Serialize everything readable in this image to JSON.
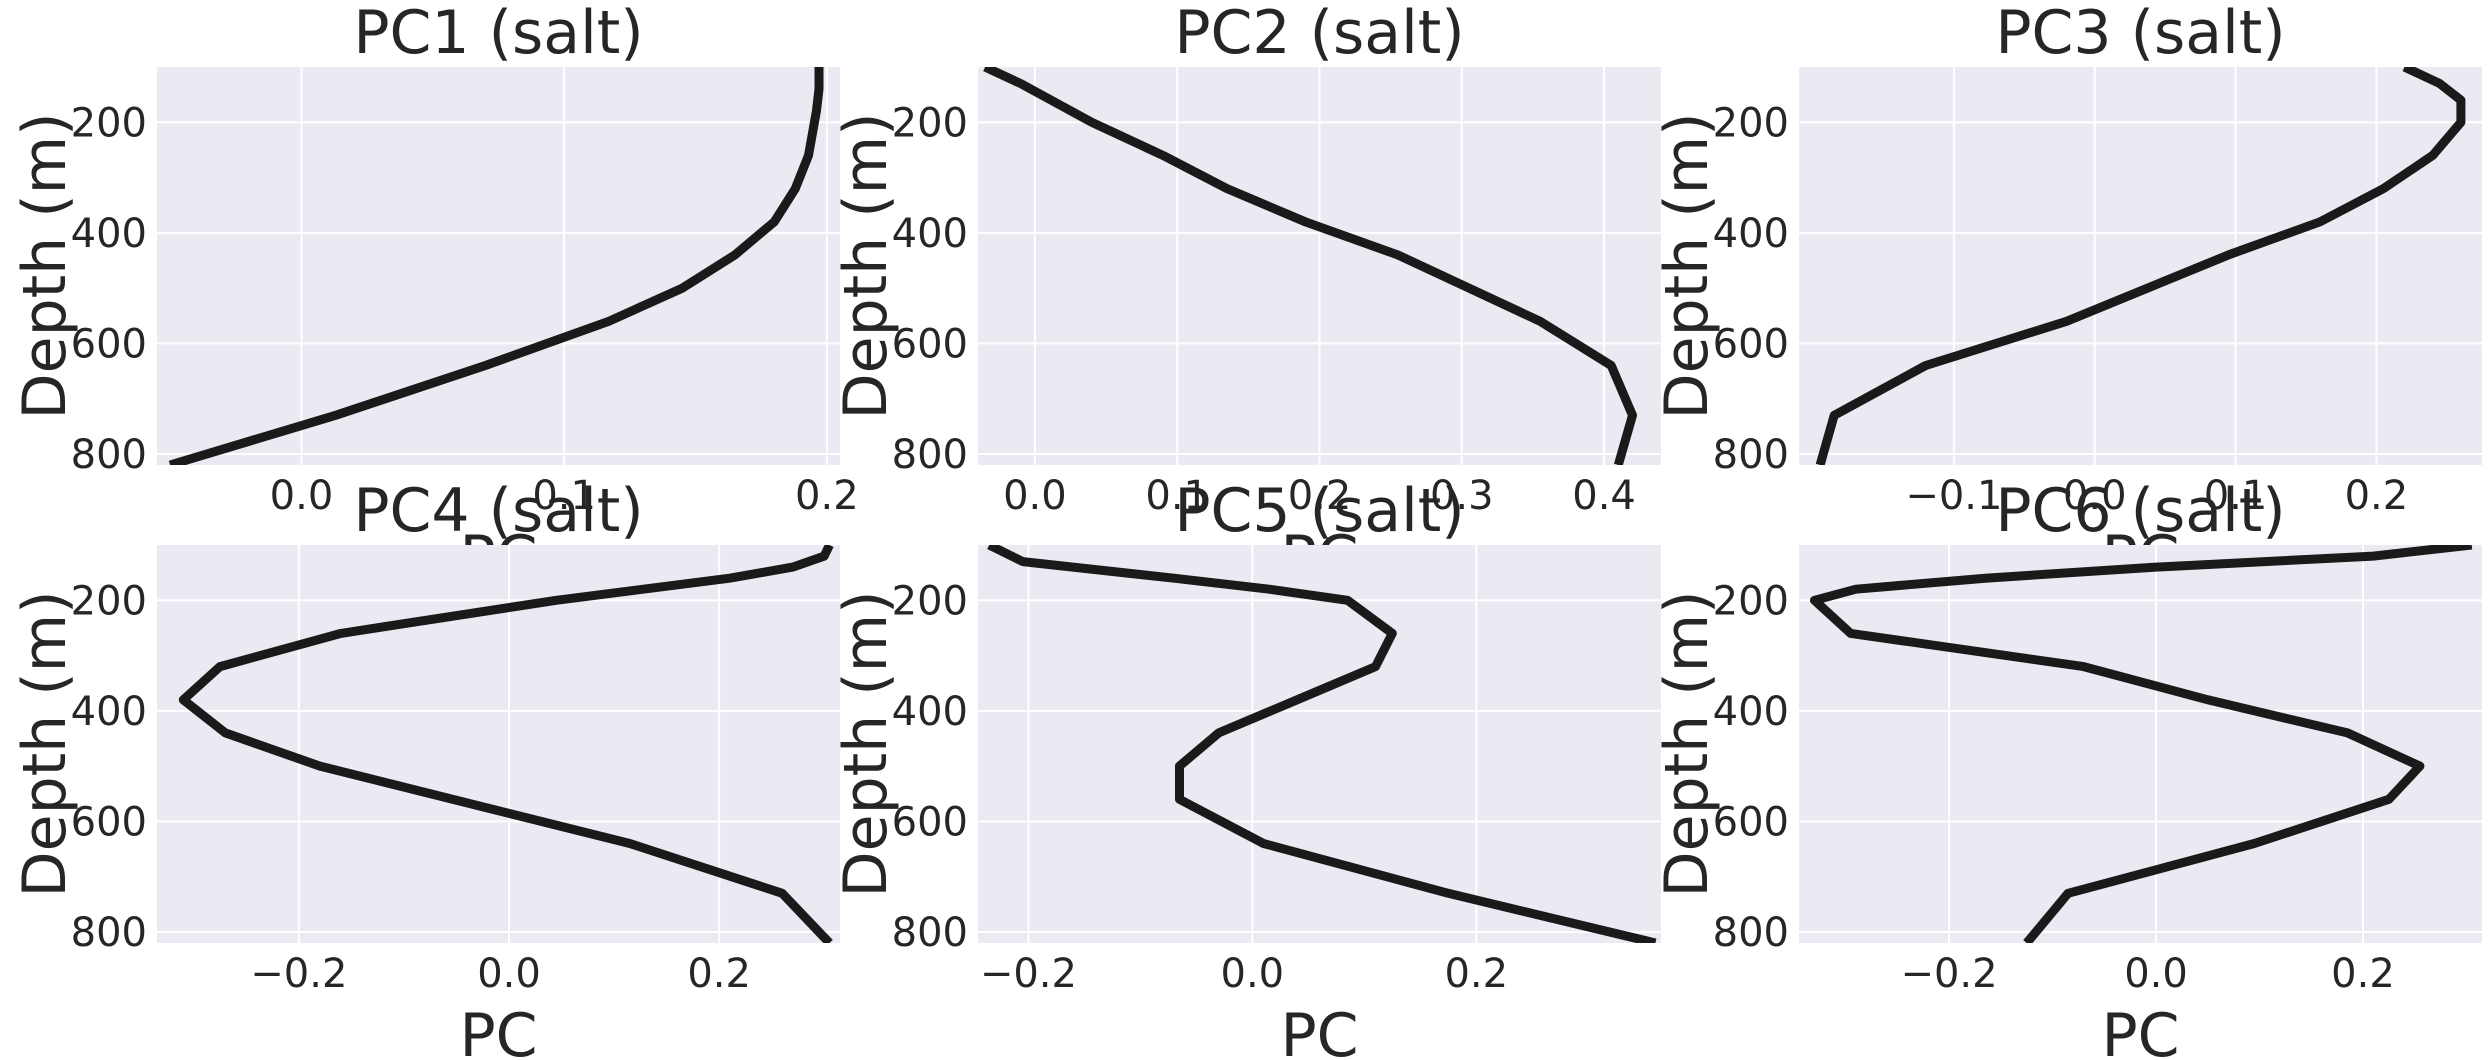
{
  "chart_data": [
    {
      "type": "line",
      "title": "PC1 (salt)",
      "xlabel": "PC",
      "ylabel": "Depth (m)",
      "xlim": [
        -0.055,
        0.205
      ],
      "ylim": [
        820,
        100
      ],
      "y_inverted": true,
      "xticks": [
        0.0,
        0.1,
        0.2
      ],
      "xtick_labels": [
        "0.0",
        "0.1",
        "0.2"
      ],
      "yticks": [
        200,
        400,
        600,
        800
      ],
      "ytick_labels": [
        "200",
        "400",
        "600",
        "800"
      ],
      "grid": true,
      "series": [
        {
          "x": [
            0.197,
            0.197,
            0.196,
            0.193,
            0.188,
            0.18,
            0.165,
            0.145,
            0.117,
            0.07,
            0.013,
            -0.05
          ],
          "y": [
            100,
            140,
            180,
            260,
            320,
            380,
            440,
            500,
            560,
            640,
            730,
            820
          ]
        }
      ]
    },
    {
      "type": "line",
      "title": "PC2 (salt)",
      "xlabel": "PC",
      "ylabel": "Depth (m)",
      "xlim": [
        -0.04,
        0.44
      ],
      "ylim": [
        820,
        100
      ],
      "y_inverted": true,
      "xticks": [
        0.0,
        0.1,
        0.2,
        0.3,
        0.4
      ],
      "xtick_labels": [
        "0.0",
        "0.1",
        "0.2",
        "0.3",
        "0.4"
      ],
      "yticks": [
        200,
        400,
        600,
        800
      ],
      "ytick_labels": [
        "200",
        "400",
        "600",
        "800"
      ],
      "grid": true,
      "series": [
        {
          "x": [
            -0.035,
            -0.01,
            0.04,
            0.09,
            0.135,
            0.19,
            0.255,
            0.305,
            0.355,
            0.405,
            0.42,
            0.41
          ],
          "y": [
            100,
            130,
            200,
            260,
            320,
            380,
            440,
            500,
            560,
            640,
            730,
            820
          ]
        }
      ]
    },
    {
      "type": "line",
      "title": "PC3 (salt)",
      "xlabel": "PC",
      "ylabel": "Depth (m)",
      "xlim": [
        -0.21,
        0.275
      ],
      "ylim": [
        820,
        100
      ],
      "y_inverted": true,
      "xticks": [
        -0.1,
        0.0,
        0.1,
        0.2
      ],
      "xtick_labels": [
        "−0.1",
        "0.0",
        "0.1",
        "0.2"
      ],
      "yticks": [
        200,
        400,
        600,
        800
      ],
      "ytick_labels": [
        "200",
        "400",
        "600",
        "800"
      ],
      "grid": true,
      "series": [
        {
          "x": [
            0.22,
            0.245,
            0.26,
            0.26,
            0.24,
            0.205,
            0.16,
            0.095,
            -0.02,
            -0.12,
            -0.185,
            -0.195
          ],
          "y": [
            100,
            130,
            160,
            200,
            260,
            320,
            380,
            440,
            560,
            640,
            730,
            820
          ]
        }
      ]
    },
    {
      "type": "line",
      "title": "PC4 (salt)",
      "xlabel": "PC",
      "ylabel": "Depth (m)",
      "xlim": [
        -0.335,
        0.315
      ],
      "ylim": [
        820,
        100
      ],
      "y_inverted": true,
      "xticks": [
        -0.2,
        0.0,
        0.2
      ],
      "xtick_labels": [
        "−0.2",
        "0.0",
        "0.2"
      ],
      "yticks": [
        200,
        400,
        600,
        800
      ],
      "ytick_labels": [
        "200",
        "400",
        "600",
        "800"
      ],
      "grid": true,
      "series": [
        {
          "x": [
            0.305,
            0.3,
            0.27,
            0.21,
            0.045,
            -0.16,
            -0.275,
            -0.31,
            -0.27,
            -0.18,
            0.115,
            0.26,
            0.305
          ],
          "y": [
            100,
            120,
            140,
            160,
            200,
            260,
            320,
            380,
            440,
            500,
            640,
            730,
            820
          ]
        }
      ]
    },
    {
      "type": "line",
      "title": "PC5 (salt)",
      "xlabel": "PC",
      "ylabel": "Depth (m)",
      "xlim": [
        -0.245,
        0.365
      ],
      "ylim": [
        820,
        100
      ],
      "y_inverted": true,
      "xticks": [
        -0.2,
        0.0,
        0.2
      ],
      "xtick_labels": [
        "−0.2",
        "0.0",
        "0.2"
      ],
      "yticks": [
        200,
        400,
        600,
        800
      ],
      "ytick_labels": [
        "200",
        "400",
        "600",
        "800"
      ],
      "grid": true,
      "series": [
        {
          "x": [
            -0.235,
            -0.205,
            -0.07,
            0.015,
            0.085,
            0.125,
            0.11,
            0.04,
            -0.03,
            -0.065,
            -0.065,
            0.01,
            0.175,
            0.36
          ],
          "y": [
            100,
            130,
            160,
            180,
            200,
            260,
            320,
            380,
            440,
            500,
            560,
            640,
            730,
            820
          ]
        }
      ]
    },
    {
      "type": "line",
      "title": "PC6 (salt)",
      "xlabel": "PC",
      "ylabel": "Depth (m)",
      "xlim": [
        -0.345,
        0.315
      ],
      "ylim": [
        820,
        100
      ],
      "y_inverted": true,
      "xticks": [
        -0.2,
        0.0,
        0.2
      ],
      "xtick_labels": [
        "−0.2",
        "0.0",
        "0.2"
      ],
      "yticks": [
        200,
        400,
        600,
        800
      ],
      "ytick_labels": [
        "200",
        "400",
        "600",
        "800"
      ],
      "grid": true,
      "series": [
        {
          "x": [
            0.305,
            0.21,
            0.0,
            -0.165,
            -0.29,
            -0.33,
            -0.295,
            -0.07,
            0.05,
            0.185,
            0.255,
            0.225,
            0.095,
            -0.085,
            -0.125
          ],
          "y": [
            100,
            120,
            140,
            160,
            180,
            200,
            260,
            320,
            380,
            440,
            500,
            560,
            640,
            730,
            820
          ]
        }
      ]
    }
  ]
}
